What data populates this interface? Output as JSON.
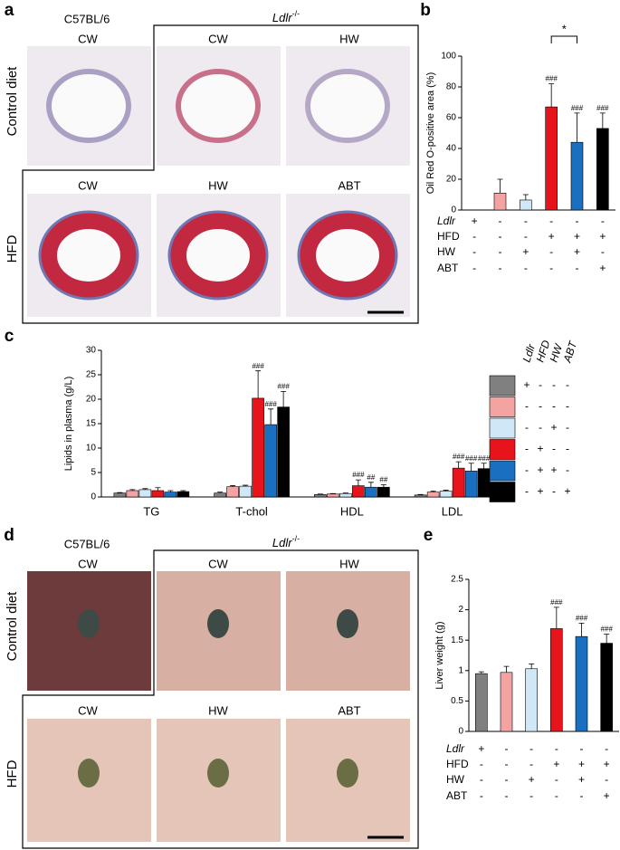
{
  "figure": {
    "panel_a": {
      "letter": "a",
      "strain_wt": "C57BL/6",
      "strain_ko": {
        "gene": "Ldlr",
        "genotype": "-/-"
      },
      "row_labels": [
        "Control diet",
        "HFD"
      ],
      "top_labels": [
        "CW",
        "CW",
        "HW"
      ],
      "bottom_labels": [
        "CW",
        "HW",
        "ABT"
      ]
    },
    "panel_d": {
      "letter": "d",
      "strain_wt": "C57BL/6",
      "strain_ko": {
        "gene": "Ldlr",
        "genotype": "-/-"
      },
      "row_labels": [
        "Control diet",
        "HFD"
      ],
      "top_labels": [
        "CW",
        "CW",
        "HW"
      ],
      "bottom_labels": [
        "CW",
        "HW",
        "ABT"
      ]
    }
  },
  "chart_data": [
    {
      "panel": "b",
      "type": "bar",
      "ylabel": "Oil Red O-positive area (%)",
      "values": [
        0,
        11,
        6.5,
        67,
        44,
        53
      ],
      "errors": [
        0,
        9,
        3.5,
        15,
        19,
        10
      ],
      "colors": [
        "#808080",
        "#f4a3a3",
        "#cfe7f7",
        "#e8141c",
        "#1a6fc0",
        "#000000"
      ],
      "significance": [
        null,
        null,
        null,
        "###",
        "###",
        "###"
      ],
      "comparison_label": "*",
      "ylim": [
        0,
        100
      ],
      "yticks": [
        0,
        20,
        40,
        60,
        80,
        100
      ],
      "factors": {
        "names": [
          "Ldlr",
          "HFD",
          "HW",
          "ABT"
        ],
        "levels": [
          [
            "+",
            "-",
            "-",
            "-",
            "-",
            "-"
          ],
          [
            "-",
            "-",
            "-",
            "+",
            "+",
            "+"
          ],
          [
            "-",
            "-",
            "+",
            "-",
            "+",
            "-"
          ],
          [
            "-",
            "-",
            "-",
            "-",
            "-",
            "+"
          ]
        ]
      }
    },
    {
      "panel": "c",
      "type": "grouped_bar",
      "ylabel": "Lipids in plasma (g/L)",
      "categories": [
        "TG",
        "T-chol",
        "HDL",
        "LDL"
      ],
      "series": [
        {
          "color": "#808080",
          "values": [
            0.8,
            0.8,
            0.5,
            0.4
          ],
          "errors": [
            0.1,
            0.2,
            0.1,
            0.1
          ],
          "significance": [
            null,
            null,
            null,
            null
          ]
        },
        {
          "color": "#f4a3a3",
          "values": [
            1.3,
            2.1,
            0.6,
            1.0
          ],
          "errors": [
            0.2,
            0.2,
            0.1,
            0.2
          ],
          "significance": [
            null,
            null,
            null,
            null
          ]
        },
        {
          "color": "#cfe7f7",
          "values": [
            1.5,
            2.2,
            0.7,
            1.2
          ],
          "errors": [
            0.2,
            0.2,
            0.1,
            0.2
          ],
          "significance": [
            null,
            null,
            null,
            null
          ]
        },
        {
          "color": "#e8141c",
          "values": [
            1.3,
            20.2,
            2.3,
            5.9
          ],
          "errors": [
            0.6,
            5.6,
            1.2,
            1.3
          ],
          "significance": [
            null,
            "###",
            "###",
            "###"
          ]
        },
        {
          "color": "#1a6fc0",
          "values": [
            1.0,
            14.8,
            2.0,
            5.3
          ],
          "errors": [
            0.3,
            3.2,
            1.0,
            1.6
          ],
          "significance": [
            null,
            "###",
            "##",
            "###"
          ]
        },
        {
          "color": "#000000",
          "values": [
            1.1,
            18.4,
            2.0,
            5.8
          ],
          "errors": [
            0.2,
            3.2,
            0.5,
            1.1
          ],
          "significance": [
            null,
            "###",
            "##",
            "###"
          ]
        }
      ],
      "ylim": [
        0,
        30
      ],
      "yticks": [
        0,
        5,
        10,
        15,
        20,
        25,
        30
      ],
      "legend_table": {
        "headers": [
          "Ldlr",
          "HFD",
          "HW",
          "ABT"
        ],
        "rows": [
          [
            "+",
            "-",
            "-",
            "-"
          ],
          [
            "-",
            "-",
            "-",
            "-"
          ],
          [
            "-",
            "-",
            "+",
            "-"
          ],
          [
            "-",
            "+",
            "-",
            "-"
          ],
          [
            "-",
            "+",
            "+",
            "-"
          ],
          [
            "-",
            "+",
            "-",
            "+"
          ]
        ]
      }
    },
    {
      "panel": "e",
      "type": "bar",
      "ylabel": "Liver weight (g)",
      "values": [
        0.95,
        0.97,
        1.03,
        1.69,
        1.56,
        1.45
      ],
      "errors": [
        0.03,
        0.1,
        0.08,
        0.35,
        0.22,
        0.15
      ],
      "colors": [
        "#808080",
        "#f4a3a3",
        "#cfe7f7",
        "#e8141c",
        "#1a6fc0",
        "#000000"
      ],
      "significance": [
        null,
        null,
        null,
        "###",
        "###",
        "###"
      ],
      "ylim": [
        0,
        2.5
      ],
      "yticks": [
        0,
        0.5,
        1,
        1.5,
        2,
        2.5
      ],
      "factors": {
        "names": [
          "Ldlr",
          "HFD",
          "HW",
          "ABT"
        ],
        "levels": [
          [
            "+",
            "-",
            "-",
            "-",
            "-",
            "-"
          ],
          [
            "-",
            "-",
            "-",
            "+",
            "+",
            "+"
          ],
          [
            "-",
            "-",
            "+",
            "-",
            "+",
            "-"
          ],
          [
            "-",
            "-",
            "-",
            "-",
            "-",
            "+"
          ]
        ]
      }
    }
  ]
}
